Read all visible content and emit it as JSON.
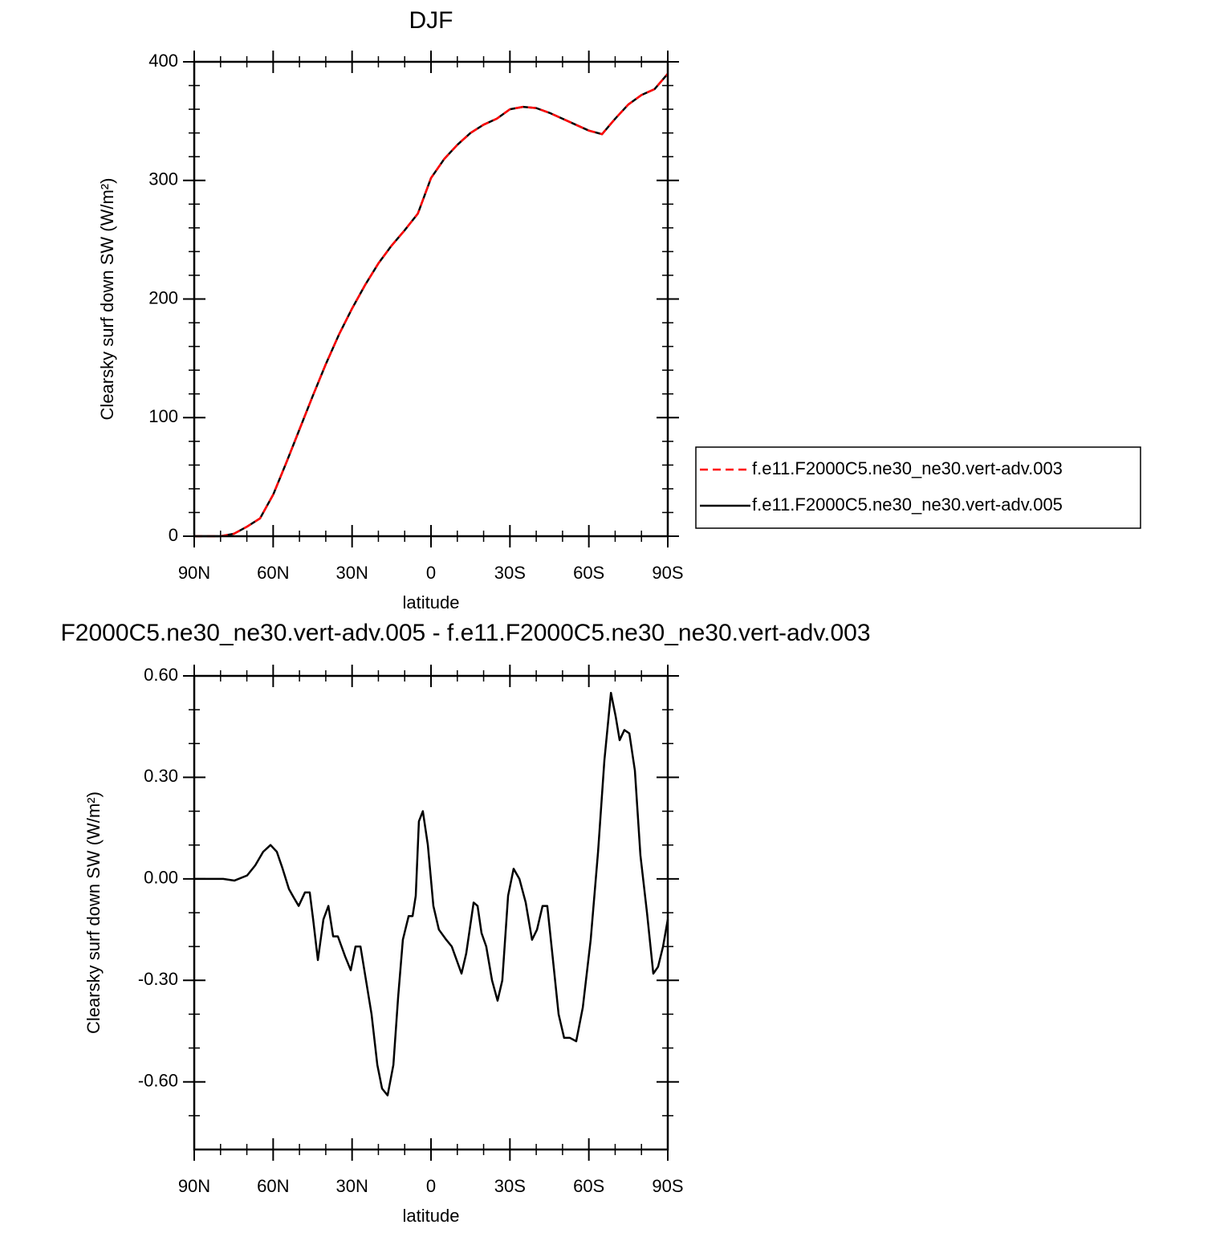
{
  "chart_data": [
    {
      "type": "line",
      "title": "DJF",
      "xlabel": "latitude",
      "ylabel": "Clearsky surf down SW (W/m²)",
      "x": [
        90,
        85,
        80,
        75,
        70,
        65,
        60,
        55,
        50,
        45,
        40,
        35,
        30,
        25,
        20,
        15,
        10,
        5,
        0,
        -5,
        -10,
        -15,
        -20,
        -25,
        -30,
        -35,
        -40,
        -45,
        -50,
        -55,
        -60,
        -65,
        -70,
        -75,
        -80,
        -85,
        -90
      ],
      "series": [
        {
          "name": "f.e11.F2000C5.ne30_ne30.vert-adv.005",
          "color": "#000000",
          "dash": false,
          "values": [
            0,
            0,
            0,
            2,
            8,
            15,
            35,
            62,
            90,
            118,
            145,
            170,
            192,
            212,
            230,
            245,
            258,
            272,
            302,
            318,
            330,
            340,
            347,
            352,
            360,
            362,
            361,
            357,
            352,
            347,
            342,
            339,
            352,
            364,
            372,
            377,
            390
          ]
        },
        {
          "name": "f.e11.F2000C5.ne30_ne30.vert-adv.003",
          "color": "#ff0000",
          "dash": true,
          "values": [
            0,
            0,
            0,
            2,
            8,
            15,
            35,
            62,
            90,
            118,
            145,
            170,
            192,
            212,
            230,
            245,
            258,
            272,
            302,
            318,
            330,
            340,
            347,
            352,
            360,
            362,
            361,
            357,
            352,
            347,
            342,
            339,
            352,
            364,
            372,
            377,
            390
          ]
        }
      ],
      "legend": "right",
      "xlim": [
        90,
        -90
      ],
      "xticks": [
        {
          "value": 90,
          "label": "90N"
        },
        {
          "value": 60,
          "label": "60N"
        },
        {
          "value": 30,
          "label": "30N"
        },
        0,
        {
          "value": -30,
          "label": "30S"
        },
        {
          "value": -60,
          "label": "60S"
        },
        {
          "value": -90,
          "label": "90S"
        }
      ],
      "xminorticks": [
        80,
        70,
        50,
        40,
        20,
        10,
        -10,
        -20,
        -40,
        -50,
        -70,
        -80
      ],
      "ylim": [
        0,
        400
      ],
      "yticks": [
        0,
        100,
        200,
        300,
        400
      ],
      "yminorticks": [
        20,
        40,
        60,
        80,
        120,
        140,
        160,
        180,
        220,
        240,
        260,
        280,
        320,
        340,
        360,
        380
      ]
    },
    {
      "type": "line",
      "title": "F2000C5.ne30_ne30.vert-adv.005 - f.e11.F2000C5.ne30_ne30.vert-adv.003",
      "xlabel": "latitude",
      "ylabel": "Clearsky surf down SW (W/m²)",
      "x": [
        90,
        79,
        74.7,
        69.9,
        66.8,
        63.8,
        61,
        58.6,
        56.4,
        54,
        52.2,
        50.3,
        47.9,
        46.1,
        44.8,
        43,
        40.9,
        39,
        37.2,
        35.4,
        32.6,
        30.5,
        28.7,
        26.8,
        24.7,
        22.6,
        20.4,
        18.6,
        16.5,
        14.3,
        12.5,
        10.7,
        8.5,
        7,
        5.8,
        4.6,
        3.1,
        1.2,
        -0.9,
        -3,
        -5.8,
        -7.9,
        -11.6,
        -13.4,
        -16.2,
        -17.7,
        -19.2,
        -21,
        -23.2,
        -25.3,
        -27.1,
        -29.3,
        -31.4,
        -33.6,
        -36,
        -38.4,
        -40.3,
        -42.4,
        -44.2,
        -46.1,
        -48.5,
        -50.6,
        -52.8,
        -55.2,
        -57.7,
        -60.7,
        -63.5,
        -65.9,
        -68.4,
        -70.2,
        -71.7,
        -73.5,
        -75.4,
        -77.5,
        -79.6,
        -82.1,
        -84.5,
        -86.3,
        -88.2,
        -90
      ],
      "series": [
        {
          "name": "f.e11.F2000C5.ne30_ne30.vert-adv.005",
          "color": "#000000",
          "dash": false,
          "values": [
            0,
            0,
            -0.005,
            0.01,
            0.04,
            0.08,
            0.1,
            0.08,
            0.03,
            -0.03,
            -0.055,
            -0.08,
            -0.04,
            -0.04,
            -0.12,
            -0.24,
            -0.12,
            -0.08,
            -0.17,
            -0.17,
            -0.23,
            -0.27,
            -0.2,
            -0.2,
            -0.3,
            -0.4,
            -0.55,
            -0.62,
            -0.64,
            -0.55,
            -0.35,
            -0.18,
            -0.11,
            -0.11,
            -0.05,
            0.17,
            0.2,
            0.1,
            -0.08,
            -0.15,
            -0.18,
            -0.2,
            -0.28,
            -0.22,
            -0.07,
            -0.08,
            -0.16,
            -0.2,
            -0.3,
            -0.36,
            -0.3,
            -0.05,
            0.03,
            0,
            -0.07,
            -0.18,
            -0.15,
            -0.08,
            -0.08,
            -0.22,
            -0.4,
            -0.47,
            -0.47,
            -0.48,
            -0.38,
            -0.18,
            0.08,
            0.35,
            0.55,
            0.48,
            0.41,
            0.44,
            0.43,
            0.32,
            0.07,
            -0.1,
            -0.28,
            -0.26,
            -0.2,
            -0.12
          ]
        }
      ],
      "xlim": [
        90,
        -90
      ],
      "xticks": [
        {
          "value": 90,
          "label": "90N"
        },
        {
          "value": 60,
          "label": "60N"
        },
        {
          "value": 30,
          "label": "30N"
        },
        0,
        {
          "value": -30,
          "label": "30S"
        },
        {
          "value": -60,
          "label": "60S"
        },
        {
          "value": -90,
          "label": "90S"
        }
      ],
      "xminorticks": [
        80,
        70,
        50,
        40,
        20,
        10,
        -10,
        -20,
        -40,
        -50,
        -70,
        -80
      ],
      "ylim": [
        -0.8,
        0.6
      ],
      "yticks": [
        {
          "value": 0.6,
          "label": "0.60"
        },
        {
          "value": 0.3,
          "label": "0.30"
        },
        {
          "value": 0,
          "label": "0.00"
        },
        {
          "value": -0.3,
          "label": "-0.30"
        },
        {
          "value": -0.6,
          "label": "-0.60"
        }
      ],
      "yminorticks": [
        0.5,
        0.4,
        0.2,
        0.1,
        -0.1,
        -0.2,
        -0.4,
        -0.5,
        -0.7
      ]
    }
  ]
}
